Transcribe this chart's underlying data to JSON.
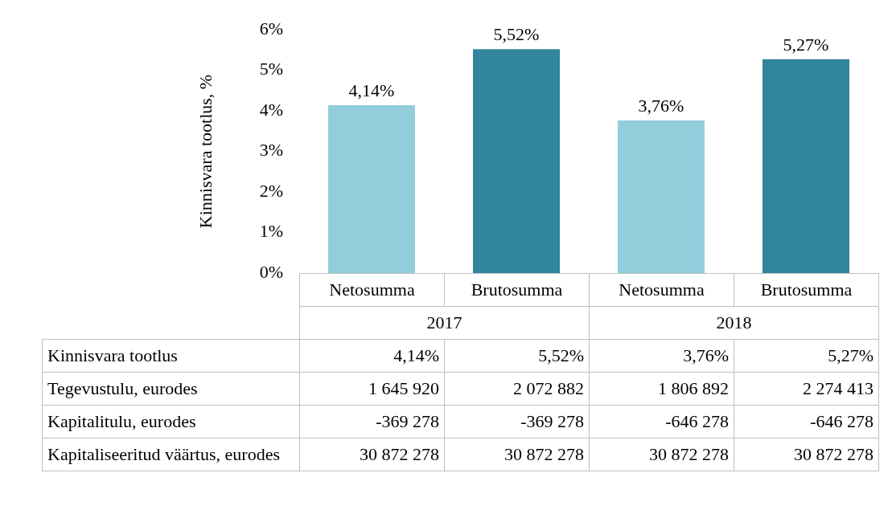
{
  "chart_data": {
    "type": "bar",
    "ylabel": "Kinnisvara tootlus, %",
    "categories": [
      "Netosumma",
      "Brutosumma",
      "Netosumma",
      "Brutosumma"
    ],
    "series": [
      {
        "name": "Kinnisvara tootlus",
        "colors": [
          "#92cddc",
          "#31859c",
          "#92cddc",
          "#31859c"
        ],
        "values": [
          4.14,
          5.52,
          3.76,
          5.27
        ],
        "value_labels": [
          "4,14%",
          "5,52%",
          "3,76%",
          "5,27%"
        ]
      }
    ],
    "ylim": [
      0,
      6
    ],
    "yticks": [
      {
        "value": 0,
        "label": "0%"
      },
      {
        "value": 1,
        "label": "1%"
      },
      {
        "value": 2,
        "label": "2%"
      },
      {
        "value": 3,
        "label": "3%"
      },
      {
        "value": 4,
        "label": "4%"
      },
      {
        "value": 5,
        "label": "5%"
      },
      {
        "value": 6,
        "label": "6%"
      }
    ],
    "annotations": [
      "2017",
      "2018",
      "Tegevustulu, eurodes",
      "1 645 920",
      "2 072 882",
      "1 806 892",
      "2 274 413",
      "Kapitalitulu, eurodes",
      "-369 278",
      "-369 278",
      "-646 278",
      "-646 278",
      "Kapitaliseeritud väärtus, eurodes",
      "30 872 278",
      "30 872 278",
      "30 872 278",
      "30 872 278"
    ]
  }
}
